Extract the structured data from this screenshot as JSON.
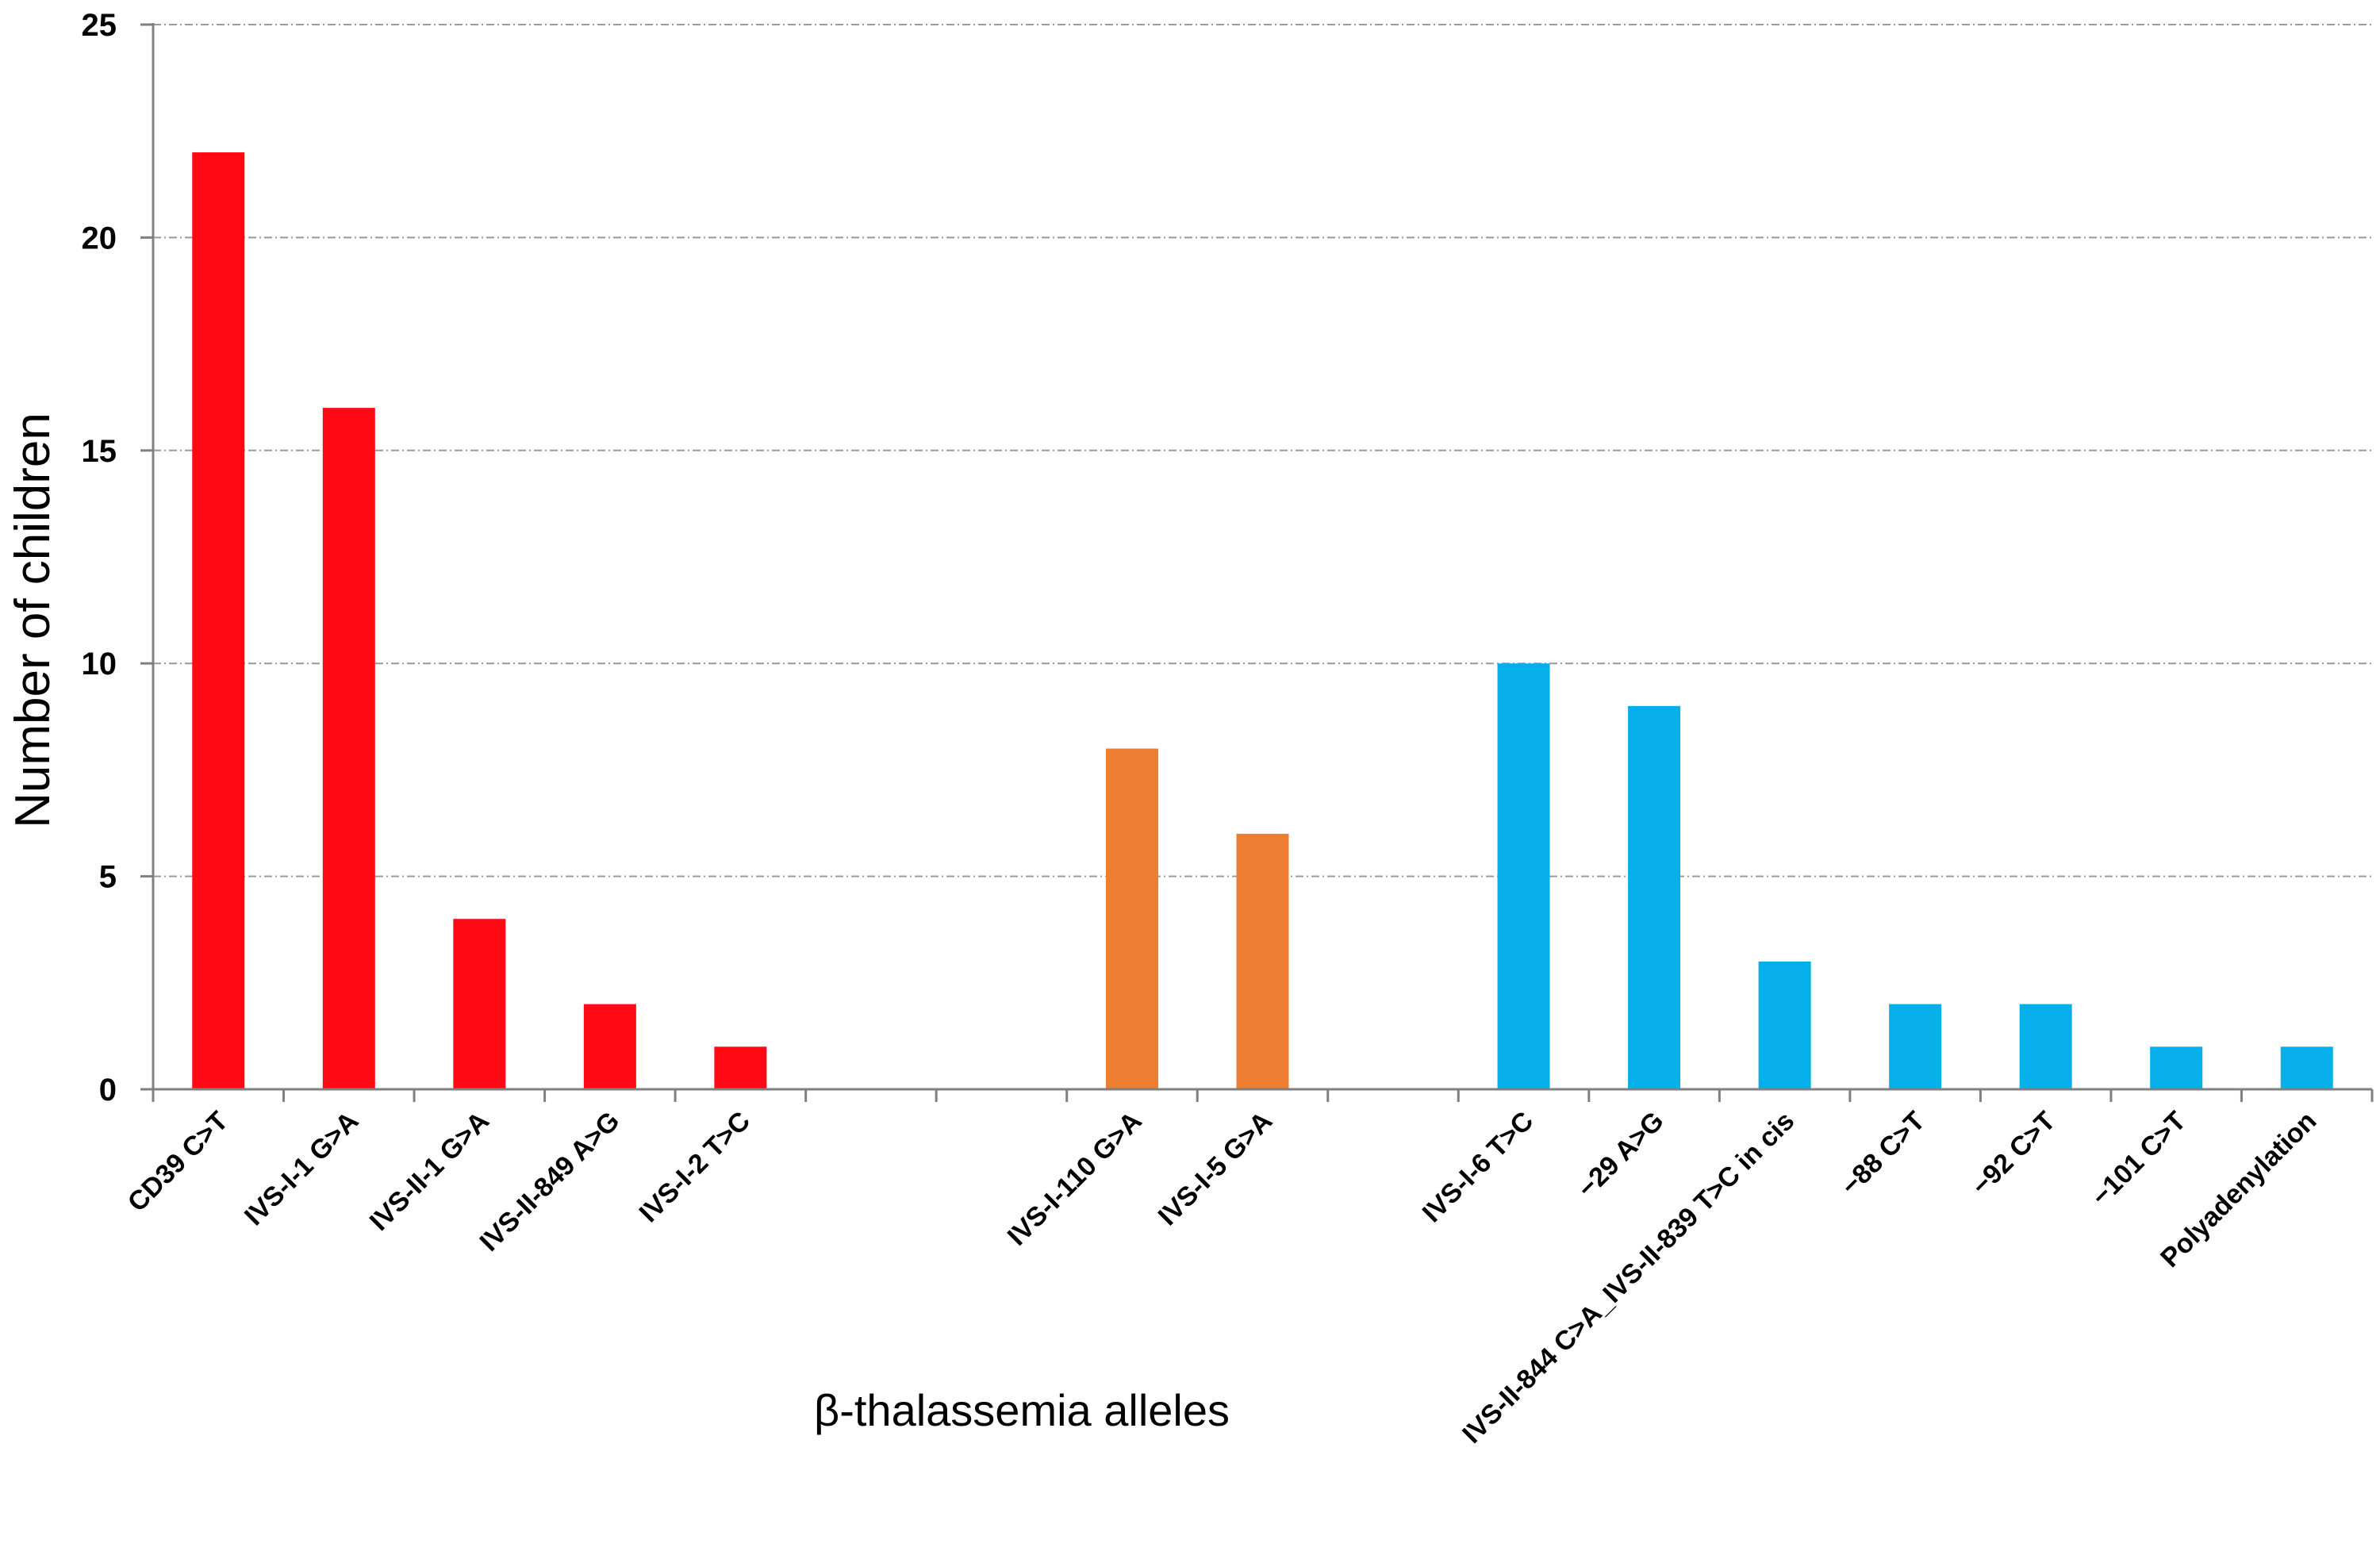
{
  "chart_data": {
    "type": "bar",
    "title": "",
    "xlabel": "β-thalassemia alleles",
    "ylabel": "Number of children",
    "ylim": [
      0,
      25
    ],
    "yticks": [
      0,
      5,
      10,
      15,
      20,
      25
    ],
    "grid": true,
    "categories": [
      "CD39 C>T",
      "IVS-I-1 G>A",
      "IVS-II-1 G>A",
      "IVS-II-849 A>G",
      "IVS-I-2 T>C",
      "",
      "",
      "IVS-I-110 G>A",
      "IVS-I-5 G>A",
      "",
      "IVS-I-6 T>C",
      "−29 A>G",
      "IVS-II-844 C>A_IVS-II-839 T>C in cis",
      "−88 C>T",
      "−92 C>T",
      "−101 C>T",
      "Polyadenylation"
    ],
    "values": [
      22,
      16,
      4,
      2,
      1,
      null,
      null,
      8,
      6,
      null,
      10,
      9,
      3,
      2,
      2,
      1,
      1
    ],
    "colors": [
      "#ff0a14",
      "#ff0a14",
      "#ff0a14",
      "#ff0a14",
      "#ff0a14",
      "",
      "",
      "#ed7d31",
      "#ed7d31",
      "",
      "#06aeea",
      "#06aeea",
      "#06aeea",
      "#06aeea",
      "#06aeea",
      "#06aeea",
      "#06aeea"
    ]
  }
}
